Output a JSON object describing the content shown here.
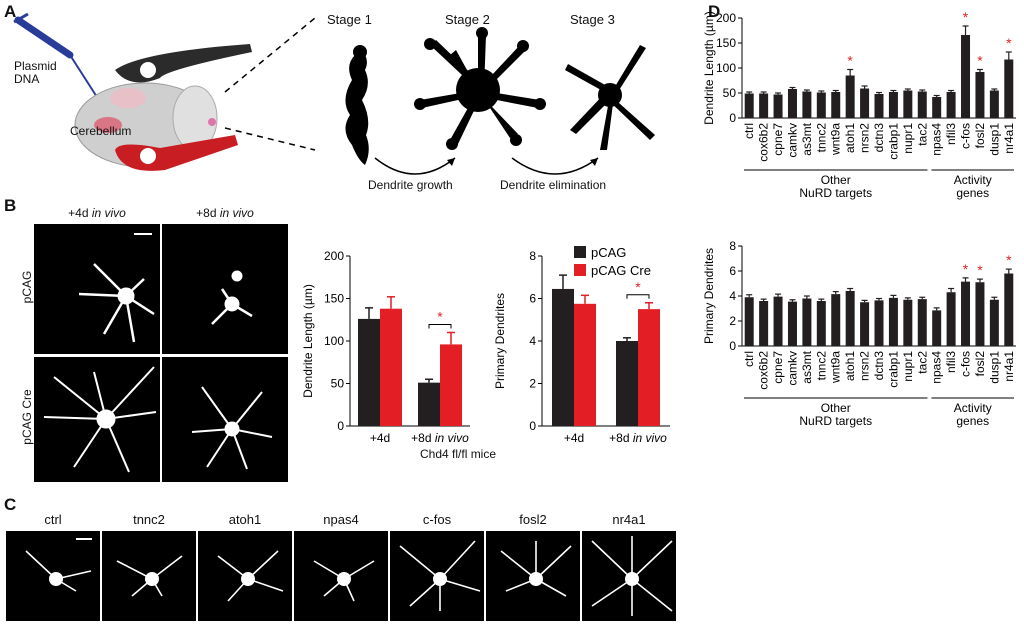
{
  "panels": {
    "a": "A",
    "b": "B",
    "c": "C",
    "d": "D"
  },
  "panel_a": {
    "stage_labels": [
      "Stage 1",
      "Stage 2",
      "Stage 3"
    ],
    "plasmid": "Plasmid\nDNA",
    "cerebellum": "Cerebellum",
    "growth": "Dendrite growth",
    "elimination": "Dendrite elimination",
    "minus": "-",
    "plus": "+"
  },
  "panel_b": {
    "col_labels": [
      "+4d",
      "+8d"
    ],
    "col_italic": "in vivo",
    "row_labels": [
      "pCAG",
      "pCAG Cre"
    ],
    "shared_xlabel": "Chd4 fl/fl mice"
  },
  "panel_c": {
    "labels": [
      "ctrl",
      "tnnc2",
      "atoh1",
      "npas4",
      "c-fos",
      "fosl2",
      "nr4a1"
    ]
  },
  "colors": {
    "black_series": "#231f20",
    "red_series": "#e31e24",
    "star": "#e31e24"
  },
  "chart_data": [
    {
      "id": "B-length",
      "type": "bar",
      "categories": [
        "+4d",
        "+8d"
      ],
      "category_suffix": [
        "",
        "in vivo"
      ],
      "series": [
        {
          "name": "pCAG",
          "values": [
            126,
            51
          ],
          "errors": [
            13,
            4
          ]
        },
        {
          "name": "pCAG Cre",
          "values": [
            138,
            96
          ],
          "errors": [
            14,
            14
          ]
        }
      ],
      "ylabel": "Dendrite Length (µm)",
      "ylim": [
        0,
        200
      ],
      "yticks": [
        0,
        50,
        100,
        150,
        200
      ],
      "significance": [
        {
          "category": 1,
          "label": "*"
        }
      ]
    },
    {
      "id": "B-primary",
      "type": "bar",
      "categories": [
        "+4d",
        "+8d"
      ],
      "category_suffix": [
        "",
        "in vivo"
      ],
      "series": [
        {
          "name": "pCAG",
          "values": [
            6.45,
            4.0
          ],
          "errors": [
            0.65,
            0.15
          ]
        },
        {
          "name": "pCAG Cre",
          "values": [
            5.75,
            5.5
          ],
          "errors": [
            0.4,
            0.3
          ]
        }
      ],
      "ylabel": "Primary Dendrites",
      "ylim": [
        0,
        8
      ],
      "yticks": [
        0,
        2,
        4,
        6,
        8
      ],
      "legend": [
        "pCAG",
        "pCAG Cre"
      ],
      "legend_position": "top-right",
      "significance": [
        {
          "category": 1,
          "label": "*"
        }
      ]
    },
    {
      "id": "D-length",
      "type": "bar",
      "categories": [
        "ctrl",
        "cox6b2",
        "cpne7",
        "camkv",
        "as3mt",
        "tnnc2",
        "wnt9a",
        "atoh1",
        "nrsn2",
        "dctn3",
        "crabp1",
        "nupr1",
        "tac2",
        "npas4",
        "nfil3",
        "c-fos",
        "fosl2",
        "dusp1",
        "nr4a1"
      ],
      "values": [
        49,
        49,
        47,
        58,
        53,
        51,
        52,
        85,
        59,
        48,
        52,
        55,
        53,
        42,
        52,
        166,
        92,
        55,
        117
      ],
      "errors": [
        3,
        3,
        3,
        3,
        3,
        3,
        3,
        12,
        5,
        3,
        3,
        3,
        3,
        3,
        3,
        18,
        5,
        3,
        15
      ],
      "significant": [
        7,
        15,
        16,
        18
      ],
      "ylabel": "Dendrite Length (µm)",
      "ylim": [
        0,
        200
      ],
      "yticks": [
        0,
        50,
        100,
        150,
        200
      ],
      "groups": [
        {
          "label": "Other\nNuRD targets",
          "from": 0,
          "to": 12
        },
        {
          "label": "Activity\ngenes",
          "from": 13,
          "to": 18
        }
      ]
    },
    {
      "id": "D-primary",
      "type": "bar",
      "categories": [
        "ctrl",
        "cox6b2",
        "cpne7",
        "camkv",
        "as3mt",
        "tnnc2",
        "wnt9a",
        "atoh1",
        "nrsn2",
        "dctn3",
        "crabp1",
        "nupr1",
        "tac2",
        "npas4",
        "nfil3",
        "c-fos",
        "fosl2",
        "dusp1",
        "nr4a1"
      ],
      "values": [
        3.9,
        3.6,
        3.95,
        3.55,
        3.8,
        3.6,
        4.15,
        4.4,
        3.5,
        3.65,
        3.85,
        3.7,
        3.75,
        2.85,
        4.3,
        5.15,
        5.1,
        3.7,
        5.8
      ],
      "errors": [
        0.2,
        0.15,
        0.2,
        0.15,
        0.2,
        0.15,
        0.2,
        0.2,
        0.15,
        0.15,
        0.2,
        0.15,
        0.15,
        0.2,
        0.3,
        0.3,
        0.25,
        0.2,
        0.35
      ],
      "significant": [
        15,
        16,
        18
      ],
      "ylabel": "Primary Dendrites",
      "ylim": [
        0,
        8
      ],
      "yticks": [
        0,
        2,
        4,
        6,
        8
      ],
      "groups": [
        {
          "label": "Other\nNuRD targets",
          "from": 0,
          "to": 12
        },
        {
          "label": "Activity\ngenes",
          "from": 13,
          "to": 18
        }
      ]
    }
  ]
}
